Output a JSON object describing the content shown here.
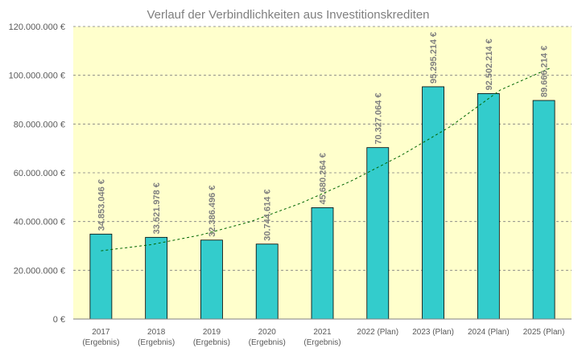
{
  "chart_data": {
    "type": "bar",
    "title": "Verlauf der Verbindlichkeiten aus Investitionskrediten",
    "xlabel": "",
    "ylabel": "",
    "categories": [
      [
        "2017",
        "(Ergebnis)"
      ],
      [
        "2018",
        "(Ergebnis)"
      ],
      [
        "2019",
        "(Ergebnis)"
      ],
      [
        "2020",
        "(Ergebnis)"
      ],
      [
        "2021",
        "(Ergebnis)"
      ],
      [
        "2022 (Plan)"
      ],
      [
        "2023 (Plan)"
      ],
      [
        "2024 (Plan)"
      ],
      [
        "2025 (Plan)"
      ]
    ],
    "values": [
      34853046,
      33521978,
      32386496,
      30744614,
      45680264,
      70327064,
      95295214,
      92502214,
      89666214
    ],
    "value_labels": [
      "34.853.046 €",
      "33.521.978 €",
      "32.386.496 €",
      "30.744.614 €",
      "45.680.264 €",
      "70.327.064 €",
      "95.295.214 €",
      "92.502.214 €",
      "89.666.214 €"
    ],
    "trendline": {
      "type": "polynomial",
      "approx_values": [
        28000000,
        30500000,
        34500000,
        40000000,
        47500000,
        56500000,
        67000000,
        79000000,
        94000000,
        103000000
      ]
    },
    "ylim": [
      0,
      120000000
    ],
    "yticks": [
      0,
      20000000,
      40000000,
      60000000,
      80000000,
      100000000,
      120000000
    ],
    "ytick_labels": [
      "0 €",
      "20.000.000 €",
      "40.000.000 €",
      "60.000.000 €",
      "80.000.000 €",
      "100.000.000 €",
      "120.000.000 €"
    ],
    "grid": true,
    "legend": "none",
    "colors": {
      "bar": "#33cccc",
      "bar_border": "#000000",
      "plot_background": "#ffffcc",
      "grid": "#7f7f7f",
      "trendline": "#006600",
      "title_text": "#7f7f7f",
      "label_text": "#7f7f7f"
    }
  }
}
